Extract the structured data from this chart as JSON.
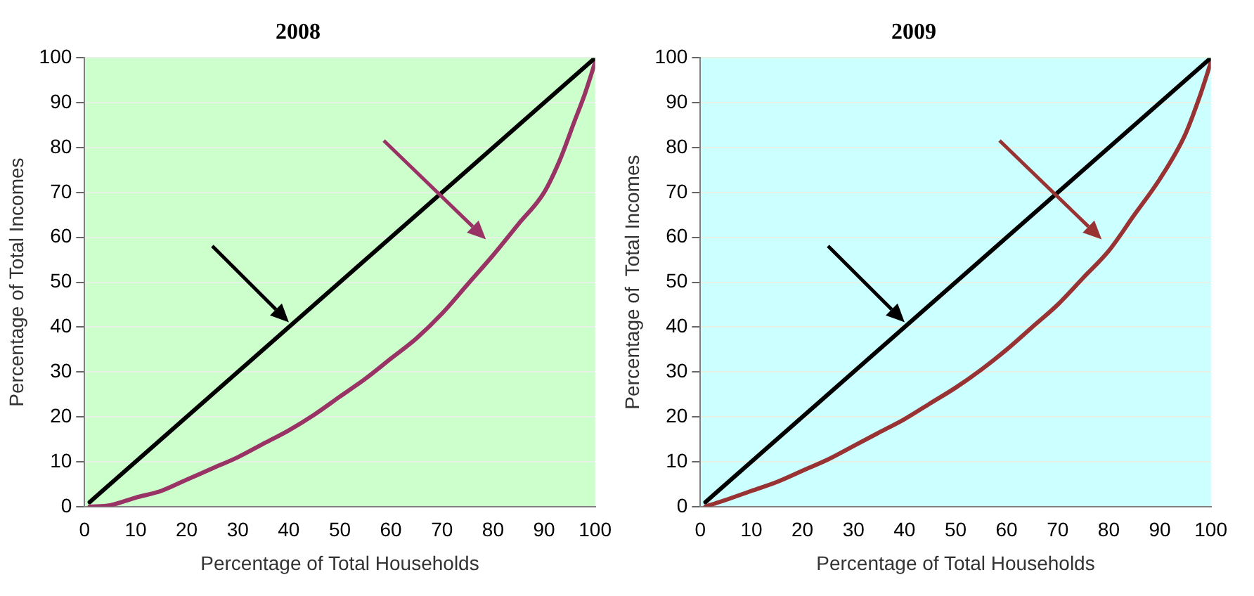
{
  "chart_data": [
    {
      "type": "line",
      "title": "2008",
      "xlabel": "Percentage of Total Households",
      "ylabel": "Percentage of Total Incomes",
      "xlim": [
        0,
        100
      ],
      "ylim": [
        0,
        100
      ],
      "xticks": [
        0,
        10,
        20,
        30,
        40,
        50,
        60,
        70,
        80,
        90,
        100
      ],
      "yticks": [
        0,
        10,
        20,
        30,
        40,
        50,
        60,
        70,
        80,
        90,
        100
      ],
      "grid": "y",
      "marker": "none",
      "line_style": "solid",
      "series": [
        {
          "color": "#000000",
          "x": [
            1,
            100
          ],
          "values": [
            1,
            100
          ]
        },
        {
          "color": "#993366",
          "x": [
            1,
            5,
            10,
            15,
            20,
            25,
            30,
            35,
            40,
            45,
            50,
            55,
            60,
            65,
            70,
            75,
            80,
            85,
            90,
            93,
            96,
            98,
            100
          ],
          "values": [
            0,
            0.3,
            2,
            3.5,
            6,
            8.5,
            11,
            14,
            17,
            20.5,
            24.5,
            28.5,
            33,
            37.5,
            43,
            49.5,
            56,
            63,
            70,
            77,
            86,
            92,
            99
          ]
        }
      ]
    },
    {
      "type": "line",
      "title": "2009",
      "xlabel": "Percentage of Total Households",
      "ylabel": "Percentage of  Total Incomes",
      "xlim": [
        0,
        100
      ],
      "ylim": [
        0,
        100
      ],
      "xticks": [
        0,
        10,
        20,
        30,
        40,
        50,
        60,
        70,
        80,
        90,
        100
      ],
      "yticks": [
        0,
        10,
        20,
        30,
        40,
        50,
        60,
        70,
        80,
        90,
        100
      ],
      "grid": "y",
      "marker": "none",
      "line_style": "solid",
      "series": [
        {
          "color": "#000000",
          "x": [
            1,
            100
          ],
          "values": [
            1,
            100
          ]
        },
        {
          "color": "#993333",
          "x": [
            1,
            5,
            10,
            15,
            20,
            25,
            30,
            35,
            40,
            45,
            50,
            55,
            60,
            65,
            70,
            75,
            80,
            85,
            90,
            95,
            98,
            100
          ],
          "values": [
            0,
            1.5,
            3.5,
            5.5,
            8,
            10.5,
            13.5,
            16.5,
            19.5,
            23,
            26.5,
            30.5,
            35,
            40,
            45,
            51,
            57,
            65,
            73,
            83,
            92,
            99
          ]
        }
      ]
    }
  ]
}
